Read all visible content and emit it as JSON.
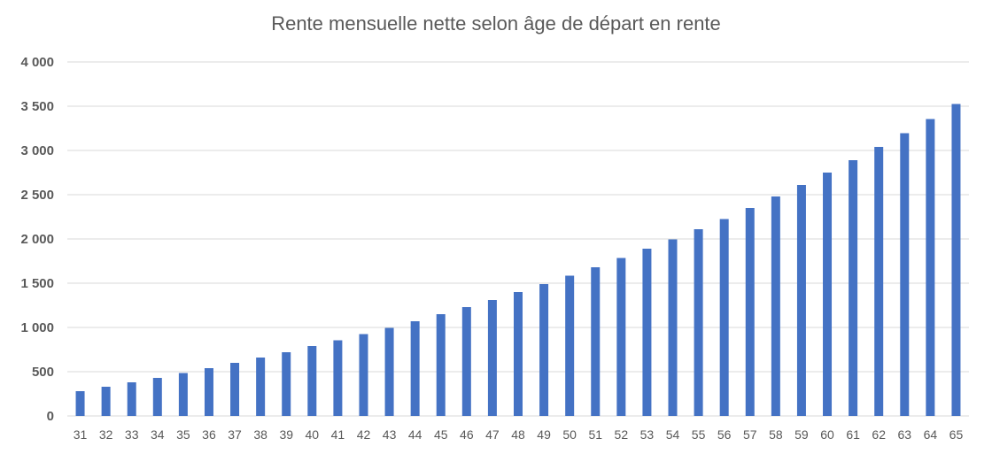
{
  "chart_data": {
    "type": "bar",
    "title": "Rente mensuelle nette selon âge de départ en rente",
    "xlabel": "",
    "ylabel": "",
    "categories": [
      "31",
      "32",
      "33",
      "34",
      "35",
      "36",
      "37",
      "38",
      "39",
      "40",
      "41",
      "42",
      "43",
      "44",
      "45",
      "46",
      "47",
      "48",
      "49",
      "50",
      "51",
      "52",
      "53",
      "54",
      "55",
      "56",
      "57",
      "58",
      "59",
      "60",
      "61",
      "62",
      "63",
      "64",
      "65"
    ],
    "series": [
      {
        "values": [
          280,
          330,
          380,
          430,
          485,
          540,
          600,
          660,
          720,
          790,
          855,
          925,
          995,
          1070,
          1150,
          1230,
          1310,
          1400,
          1490,
          1585,
          1680,
          1785,
          1890,
          1995,
          2110,
          2225,
          2350,
          2480,
          2610,
          2750,
          2890,
          3040,
          3195,
          3355,
          3525
        ],
        "color": "#4472C4"
      }
    ],
    "ylim": [
      0,
      4000
    ],
    "yticks": [
      0,
      500,
      1000,
      1500,
      2000,
      2500,
      3000,
      3500,
      4000
    ],
    "ytick_labels": [
      "0",
      "500",
      "1 000",
      "1 500",
      "2 000",
      "2 500",
      "3 000",
      "3 500",
      "4 000"
    ],
    "grid": true,
    "legend": "none",
    "colors": {
      "bar": "#4472C4",
      "grid": "#D9D9D9",
      "text": "#595959"
    }
  }
}
